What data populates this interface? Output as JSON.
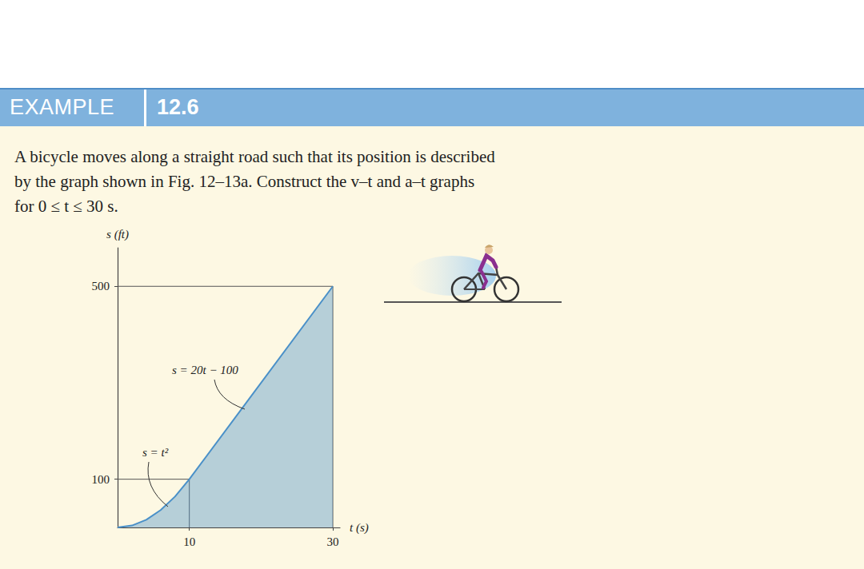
{
  "header": {
    "label": "EXAMPLE",
    "number": "12.6"
  },
  "problem": [
    "A bicycle moves along a straight road such that its position is described",
    "by the graph shown in Fig. 12–13a. Construct the v–t and a–t graphs",
    "for 0 ≤ t ≤ 30 s."
  ],
  "chart_data": {
    "type": "line",
    "x_label": "t (s)",
    "y_label": "s (ft)",
    "x": [
      0,
      2,
      4,
      6,
      8,
      10,
      30
    ],
    "values": [
      0,
      4,
      16,
      36,
      64,
      100,
      500
    ],
    "color": "#4a90c8",
    "xlim": [
      0,
      31
    ],
    "ylim": [
      0,
      580
    ],
    "xticks": [
      10,
      30
    ],
    "yticks": [
      100,
      500
    ],
    "grid": false,
    "annotations": [
      "s = t²",
      "s = 20t − 100"
    ]
  }
}
